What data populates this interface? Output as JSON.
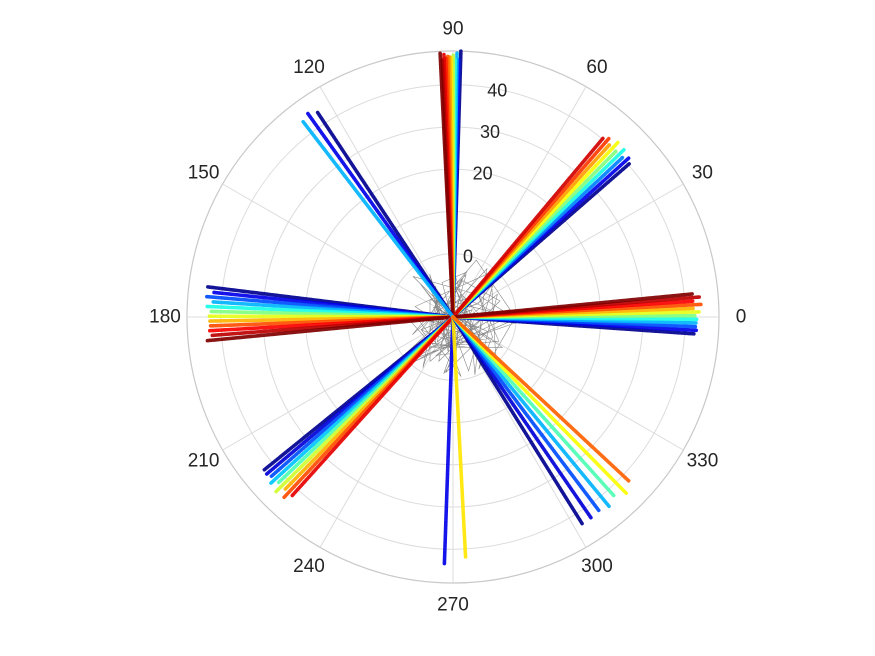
{
  "chart_data": {
    "type": "scatter",
    "coordinate_system": "polar",
    "title": "",
    "theta_unit": "degrees",
    "theta_ticks": [
      "0",
      "30",
      "60",
      "90",
      "120",
      "150",
      "180",
      "210",
      "240",
      "270",
      "300",
      "330"
    ],
    "r_ticks": [
      "0",
      "20",
      "30",
      "40"
    ],
    "rlim": [
      -15,
      48
    ],
    "grid": true,
    "legend": "none",
    "colormap": [
      "#00008f",
      "#0000ff",
      "#0080ff",
      "#00ffff",
      "#80ff80",
      "#ffff00",
      "#ff8000",
      "#ff0000",
      "#800000"
    ],
    "series": [
      {
        "theta_range": [
          88.3,
          92.8
        ],
        "r_max": 48,
        "colors": [
          0.0,
          0.15,
          0.3,
          0.42,
          0.55,
          0.65,
          0.72,
          0.78,
          0.84,
          0.9,
          0.95,
          1.0
        ]
      },
      {
        "theta_range": [
          41.0,
          50.0
        ],
        "r_max": 42,
        "colors": [
          0.0,
          0.1,
          0.25,
          0.4,
          0.5,
          0.62,
          0.72,
          0.82,
          0.92
        ]
      },
      {
        "theta_range": [
          -4.0,
          5.5
        ],
        "r_max": 44,
        "colors": [
          0.0,
          0.1,
          0.2,
          0.3,
          0.4,
          0.5,
          0.6,
          0.7,
          0.8,
          0.88,
          0.94,
          1.0
        ]
      },
      {
        "theta_range": [
          173.0,
          185.5
        ],
        "r_max": 44,
        "colors": [
          0.0,
          0.1,
          0.2,
          0.3,
          0.4,
          0.5,
          0.6,
          0.7,
          0.8,
          0.88,
          0.94,
          1.0
        ]
      },
      {
        "theta_range": [
          219.0,
          228.0
        ],
        "r_max": 44,
        "colors": [
          0.0,
          0.08,
          0.2,
          0.32,
          0.45,
          0.58,
          0.7,
          0.8,
          0.9
        ]
      },
      {
        "theta_range": [
          123.5,
          127.5
        ],
        "r_max": 45,
        "colors": [
          0.0,
          0.1,
          0.3
        ]
      },
      {
        "theta_range": [
          268.0,
          273.0
        ],
        "r_max": 44,
        "colors": [
          0.1,
          0.65
        ]
      },
      {
        "theta_range": [
          302.0,
          317.0
        ],
        "r_max": 44,
        "colors": [
          0.0,
          0.08,
          0.2,
          0.3,
          0.45,
          0.62,
          0.78
        ]
      }
    ]
  }
}
